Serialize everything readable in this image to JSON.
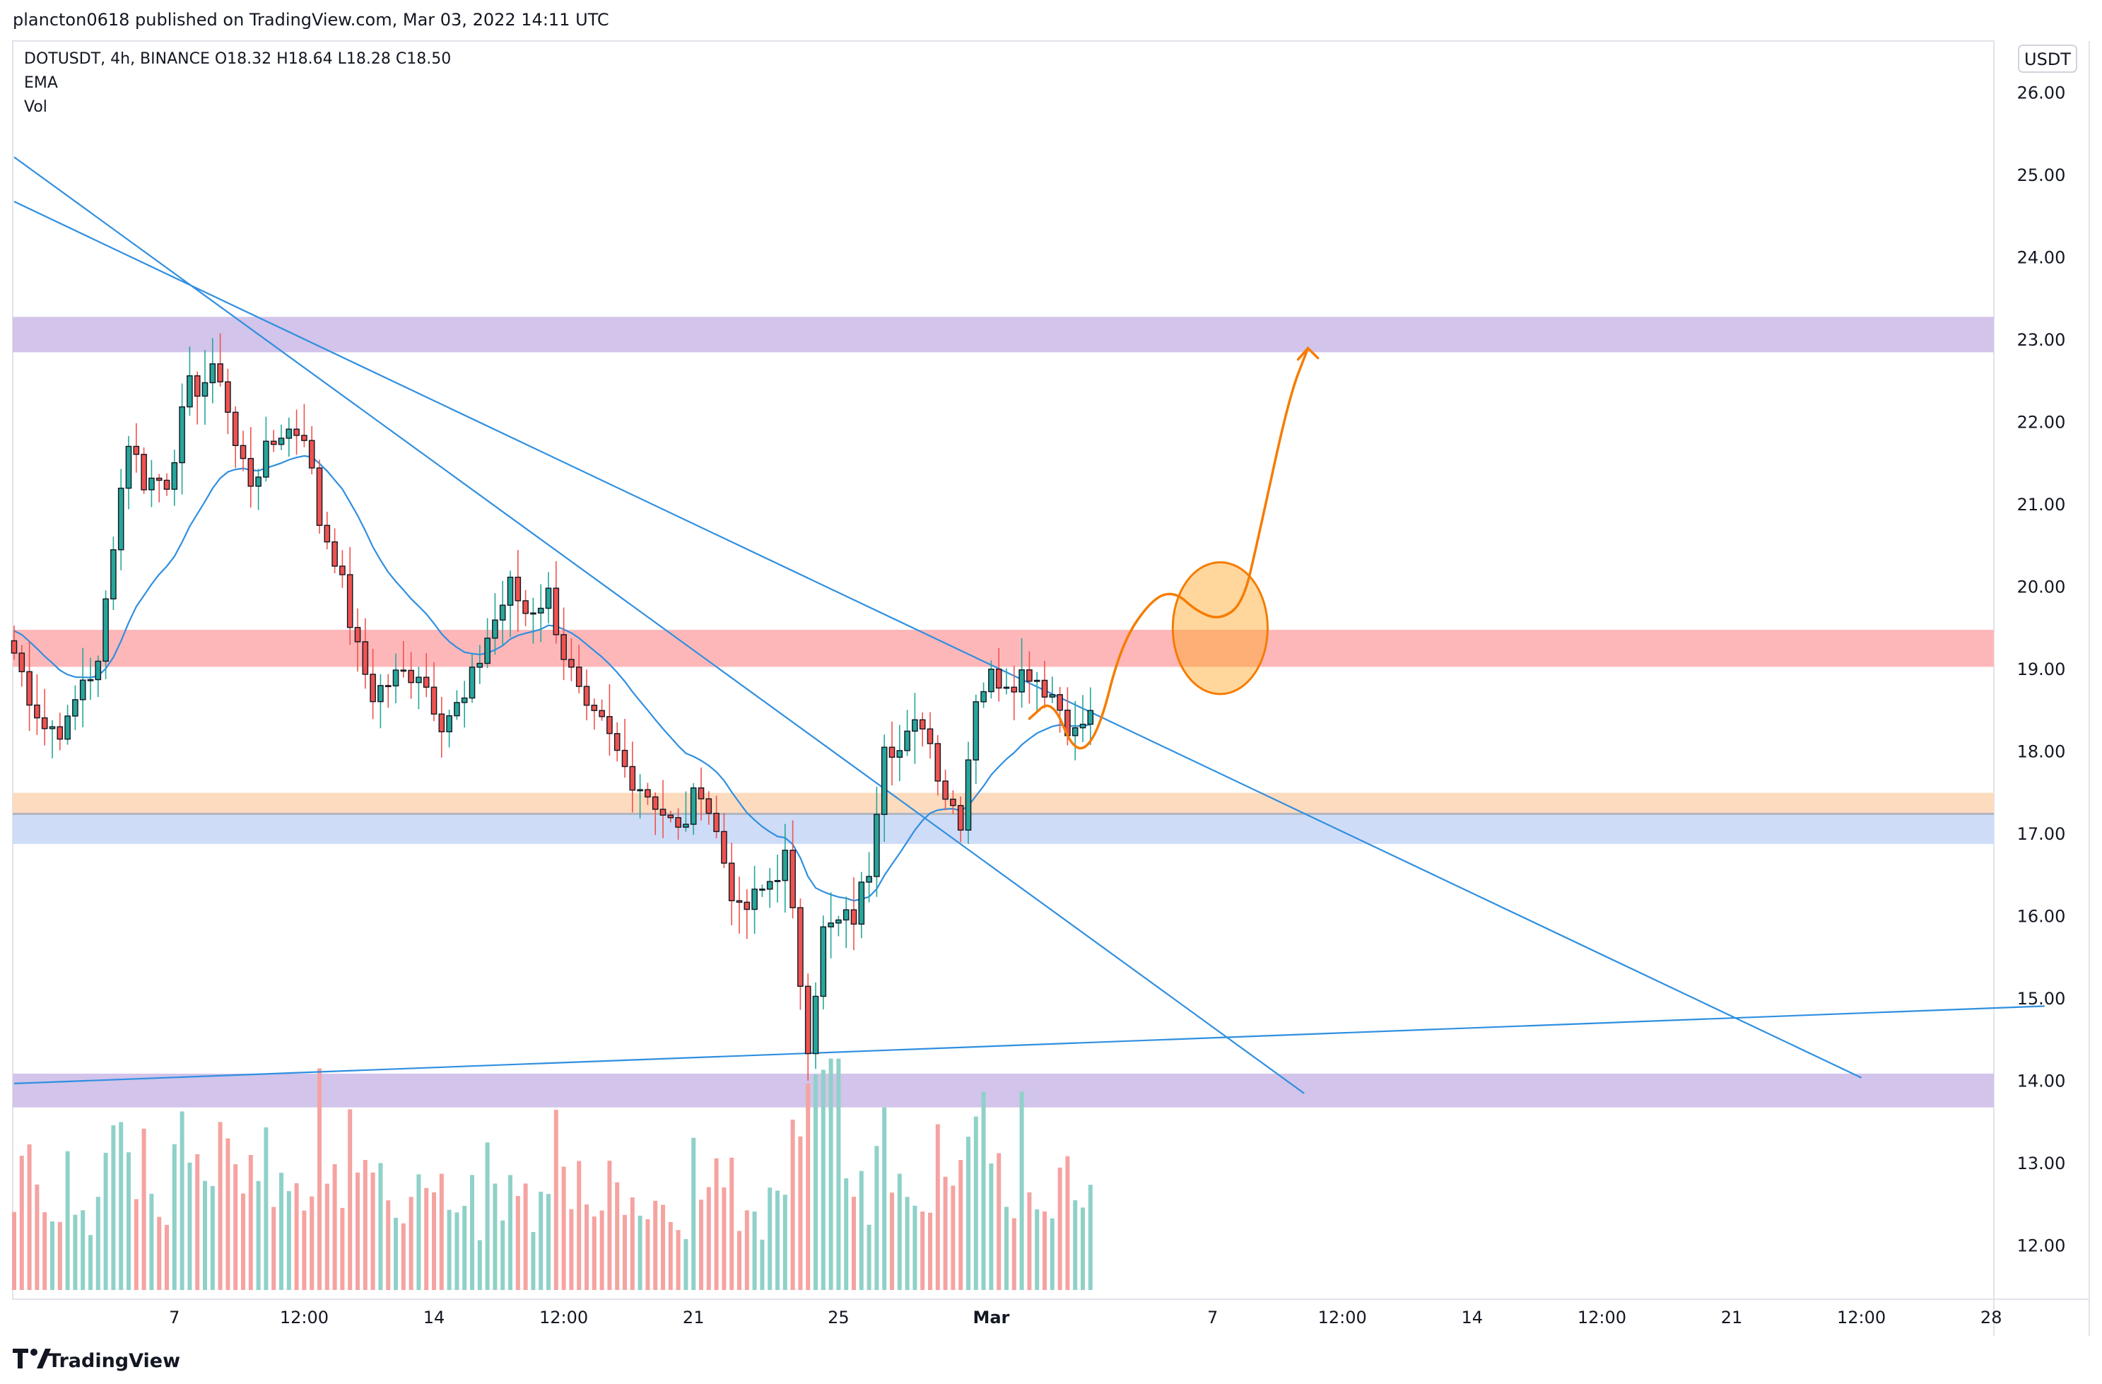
{
  "header": {
    "published_by": "plancton0618 published on TradingView.com, Mar 03, 2022 14:11 UTC"
  },
  "legend": {
    "symbol_line": "DOTUSDT, 4h, BINANCE  O18.32  H18.64  L18.28  C18.50",
    "indicator_1": "EMA",
    "indicator_2": "Vol"
  },
  "brand": {
    "name": "TradingView"
  },
  "currency_label": "USDT",
  "colors": {
    "bull": "#26a69a",
    "bear": "#ef5350",
    "bull_vol": "#8fd1c9",
    "bear_vol": "#f5a3a1",
    "trendline": "#2f8fe0",
    "ema": "#2f8fe0",
    "projection": "#f57c00",
    "zone_purple": "#d2c4ea",
    "zone_red": "#feb7b9",
    "zone_orange": "#fddbbf",
    "zone_blue": "#cedcf7"
  },
  "chart_data": {
    "type": "candlestick",
    "title": "DOTUSDT, 4h, BINANCE",
    "ohlc_last": {
      "open": 18.32,
      "high": 18.64,
      "low": 18.28,
      "close": 18.5
    },
    "ylabel": "USDT",
    "ylim": [
      11.4,
      26.4
    ],
    "y_ticks": [
      "26.00",
      "25.00",
      "24.00",
      "23.00",
      "22.00",
      "21.00",
      "20.00",
      "19.00",
      "18.00",
      "17.00",
      "16.00",
      "15.00",
      "14.00",
      "13.00",
      "12.00"
    ],
    "x_range_bars": [
      0,
      277
    ],
    "x_ticks": [
      {
        "label": "7",
        "bar": 21
      },
      {
        "label": "12:00",
        "bar": 38
      },
      {
        "label": "14",
        "bar": 55
      },
      {
        "label": "12:00",
        "bar": 72
      },
      {
        "label": "21",
        "bar": 89
      },
      {
        "label": "25",
        "bar": 108
      },
      {
        "label": "Mar",
        "bar": 128
      },
      {
        "label": "7",
        "bar": 157
      },
      {
        "label": "12:00",
        "bar": 174
      },
      {
        "label": "14",
        "bar": 191
      },
      {
        "label": "12:00",
        "bar": 208
      },
      {
        "label": "21",
        "bar": 225
      },
      {
        "label": "12:00",
        "bar": 242
      },
      {
        "label": "28",
        "bar": 259
      }
    ],
    "price_path_keypoints": [
      [
        0,
        19.2
      ],
      [
        2,
        18.7
      ],
      [
        4,
        18.3
      ],
      [
        7,
        18.3
      ],
      [
        9,
        18.9
      ],
      [
        11,
        19.0
      ],
      [
        13,
        20.6
      ],
      [
        15,
        21.8
      ],
      [
        17,
        21.3
      ],
      [
        20,
        21.3
      ],
      [
        23,
        22.4
      ],
      [
        27,
        22.6
      ],
      [
        29,
        21.7
      ],
      [
        31,
        21.3
      ],
      [
        35,
        21.9
      ],
      [
        38,
        21.9
      ],
      [
        40,
        20.8
      ],
      [
        42,
        20.4
      ],
      [
        45,
        19.2
      ],
      [
        47,
        18.7
      ],
      [
        50,
        18.9
      ],
      [
        53,
        19.0
      ],
      [
        56,
        18.4
      ],
      [
        59,
        18.6
      ],
      [
        62,
        19.4
      ],
      [
        65,
        20.0
      ],
      [
        67,
        19.7
      ],
      [
        70,
        19.9
      ],
      [
        72,
        19.2
      ],
      [
        75,
        18.4
      ],
      [
        77,
        18.3
      ],
      [
        80,
        17.8
      ],
      [
        84,
        17.4
      ],
      [
        87,
        17.0
      ],
      [
        90,
        17.6
      ],
      [
        92,
        17.0
      ],
      [
        95,
        16.0
      ],
      [
        98,
        16.3
      ],
      [
        101,
        16.7
      ],
      [
        104,
        14.5
      ],
      [
        106,
        15.8
      ],
      [
        110,
        16.0
      ],
      [
        112,
        16.6
      ],
      [
        114,
        18.2
      ],
      [
        116,
        18.0
      ],
      [
        119,
        18.4
      ],
      [
        122,
        17.5
      ],
      [
        124,
        17.2
      ],
      [
        126,
        18.7
      ],
      [
        128,
        18.9
      ],
      [
        131,
        18.9
      ],
      [
        133,
        19.0
      ],
      [
        136,
        18.7
      ],
      [
        139,
        18.2
      ],
      [
        141,
        18.5
      ]
    ],
    "volume_max": 1.0,
    "zones": [
      {
        "name": "upper-resistance",
        "color": "purple",
        "y0": 22.85,
        "y1": 23.28
      },
      {
        "name": "resistance",
        "color": "red",
        "y0": 19.03,
        "y1": 19.48
      },
      {
        "name": "support-orange",
        "color": "orange",
        "y0": 17.25,
        "y1": 17.5
      },
      {
        "name": "support-blue",
        "color": "blue",
        "y0": 16.88,
        "y1": 17.24
      },
      {
        "name": "lower-support",
        "color": "purple",
        "y0": 13.68,
        "y1": 14.09
      }
    ],
    "trendlines": [
      {
        "name": "steep-downtrend",
        "p1": [
          0,
          25.22
        ],
        "p2": [
          169,
          13.85
        ]
      },
      {
        "name": "long-downtrend",
        "p1": [
          0,
          24.68
        ],
        "p2": [
          242,
          14.04
        ]
      },
      {
        "name": "rising-support",
        "p1": [
          0,
          13.97
        ],
        "p2": [
          266,
          14.91
        ]
      }
    ],
    "projection": {
      "points": [
        [
          133,
          18.4
        ],
        [
          136,
          18.65
        ],
        [
          139,
          17.95
        ],
        [
          142,
          18.2
        ],
        [
          145,
          19.3
        ],
        [
          149,
          19.85
        ],
        [
          152,
          19.95
        ],
        [
          155,
          19.7
        ],
        [
          158,
          19.6
        ],
        [
          161,
          19.8
        ],
        [
          163,
          20.6
        ],
        [
          167,
          22.3
        ],
        [
          169.5,
          22.9
        ]
      ],
      "target": 22.9,
      "circle_center": [
        158,
        19.5
      ],
      "circle_radius_price": 0.8
    }
  }
}
